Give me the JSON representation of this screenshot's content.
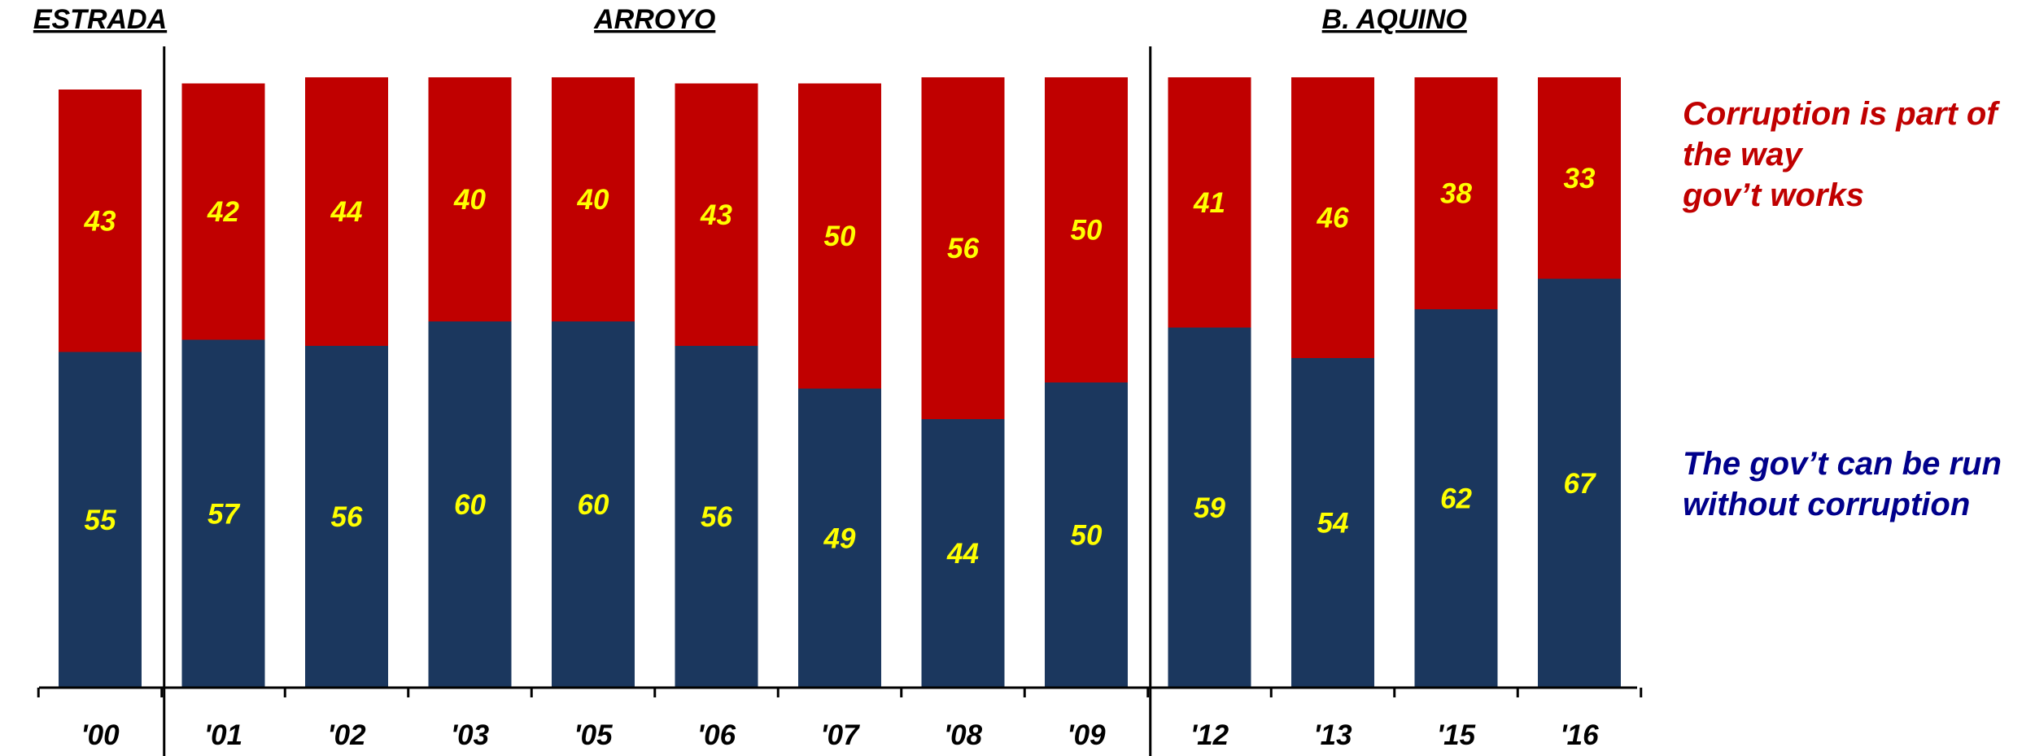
{
  "chart_data": {
    "type": "bar",
    "stacked": true,
    "categories": [
      "'00",
      "'01",
      "'02",
      "'03",
      "'05",
      "'06",
      "'07",
      "'08",
      "'09",
      "'12",
      "'13",
      "'15",
      "'16"
    ],
    "series": [
      {
        "name": "The gov't can be run without corruption",
        "color": "#1b375e",
        "values": [
          55,
          57,
          56,
          60,
          60,
          56,
          49,
          44,
          50,
          59,
          54,
          62,
          67
        ]
      },
      {
        "name": "Corruption is part of the way gov't works",
        "color": "#c00000",
        "values": [
          43,
          42,
          44,
          40,
          40,
          43,
          50,
          56,
          50,
          41,
          46,
          38,
          33
        ]
      }
    ],
    "periods": [
      {
        "label": "ESTRADA",
        "categories": [
          "'00"
        ]
      },
      {
        "label": "ARROYO",
        "categories": [
          "'01",
          "'02",
          "'03",
          "'05",
          "'06",
          "'07",
          "'08",
          "'09"
        ]
      },
      {
        "label": "B. AQUINO",
        "categories": [
          "'12",
          "'13",
          "'15",
          "'16"
        ]
      }
    ],
    "ylim": [
      0,
      100
    ],
    "grid": false,
    "legend_placement": "right",
    "label_color": "#ffff00"
  },
  "legend": {
    "top_lines": [
      "Corruption is part of",
      "the way",
      "gov’t works"
    ],
    "top_color": "#c00000",
    "bottom_lines": [
      "The gov’t can be run",
      "without corruption"
    ],
    "bottom_color": "#00008b"
  }
}
